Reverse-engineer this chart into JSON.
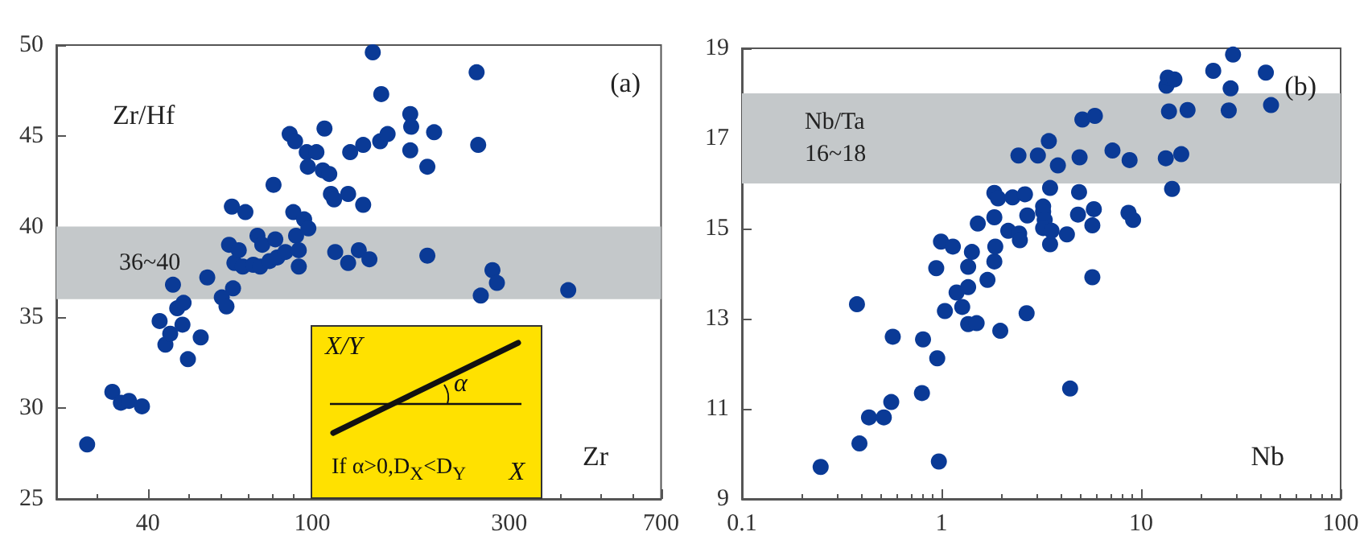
{
  "chart_data": [
    {
      "type": "scatter",
      "title": "(a)",
      "xlabel": "Zr",
      "ylabel": "Zr/Hf",
      "log": "x",
      "grid": false,
      "marker": "circle",
      "xlim": [
        24,
        700
      ],
      "xticks": [
        40,
        100,
        300,
        700
      ],
      "ylim": [
        25,
        50
      ],
      "yticks": [
        25,
        30,
        35,
        40,
        45,
        50
      ],
      "bands": [
        {
          "axis": "y",
          "from": 36,
          "to": 40,
          "label": "36~40",
          "color": "#c4c8ca"
        }
      ],
      "annotations": [
        "X/Y",
        "α",
        "If α>0,D$_{X}$<D$_{Y}$",
        "X"
      ],
      "series": [
        {
          "color": "#0a3a96",
          "x": [
            28.5,
            32.8,
            34.4,
            36.0,
            38.7,
            42.7,
            44.1,
            45.3,
            46.0,
            47.1,
            48.8,
            48.5,
            50.0,
            53.7,
            55.7,
            60.4,
            62.0,
            62.9,
            64.3,
            63.9,
            64.8,
            66.4,
            67.9,
            68.9,
            72.0,
            74.8,
            73.7,
            75.7,
            78.8,
            80.6,
            81.4,
            82.3,
            86.1,
            88.2,
            90.9,
            90.0,
            91.4,
            92.8,
            92.8,
            95.6,
            97.9,
            97.0,
            97.6,
            102.4,
            107.1,
            106.1,
            110.0,
            111.0,
            113.0,
            113.7,
            122.2,
            122.2,
            123.6,
            129.7,
            132.9,
            132.9,
            137.6,
            140.2,
            147.0,
            146.1,
            152.3,
            172.8,
            172.8,
            173.7,
            190.1,
            190.1,
            197.4,
            250.2,
            252.4,
            256.1,
            273.3,
            280.2,
            417.1
          ],
          "values": [
            28.0,
            30.9,
            30.3,
            30.4,
            30.1,
            34.8,
            33.5,
            34.1,
            36.8,
            35.5,
            35.8,
            34.6,
            32.7,
            33.9,
            37.2,
            36.1,
            35.6,
            39.0,
            36.6,
            41.1,
            38.0,
            38.7,
            37.8,
            40.8,
            37.9,
            37.8,
            39.5,
            39.0,
            38.1,
            42.3,
            39.3,
            38.3,
            38.6,
            45.1,
            44.7,
            40.8,
            39.5,
            38.7,
            37.8,
            40.4,
            39.9,
            44.1,
            43.3,
            44.1,
            45.4,
            43.1,
            42.9,
            41.8,
            41.5,
            38.6,
            41.8,
            38.0,
            44.1,
            38.7,
            41.2,
            44.5,
            38.2,
            49.6,
            47.3,
            44.7,
            45.1,
            46.2,
            44.2,
            45.5,
            38.4,
            43.3,
            45.2,
            48.5,
            44.5,
            36.2,
            37.6,
            36.9,
            36.5
          ]
        }
      ]
    },
    {
      "type": "scatter",
      "title": "(b)",
      "xlabel": "Nb",
      "log": "x",
      "grid": false,
      "marker": "circle",
      "xlim": [
        0.1,
        100
      ],
      "xticks": [
        0.1,
        1,
        10,
        100
      ],
      "ylim": [
        9,
        19
      ],
      "yticks": [
        9,
        11,
        13,
        15,
        17,
        19
      ],
      "bands": [
        {
          "axis": "y",
          "from": 16,
          "to": 18,
          "label": "Nb/Ta\n16~18",
          "color": "#c4c8ca"
        }
      ],
      "series": [
        {
          "color": "#0a3a96",
          "x": [
            0.248,
            0.377,
            0.388,
            0.433,
            0.514,
            0.56,
            0.57,
            0.798,
            0.808,
            0.941,
            0.952,
            0.97,
            0.994,
            1.04,
            1.14,
            1.19,
            1.27,
            1.36,
            1.36,
            1.36,
            1.42,
            1.5,
            1.52,
            1.7,
            1.84,
            1.84,
            1.84,
            1.86,
            1.92,
            1.97,
            2.16,
            2.27,
            2.43,
            2.45,
            2.47,
            2.62,
            2.67,
            2.69,
            3.04,
            3.23,
            3.23,
            3.29,
            3.23,
            3.45,
            3.5,
            3.5,
            3.56,
            3.83,
            4.25,
            4.41,
            4.83,
            4.89,
            4.92,
            5.08,
            5.7,
            5.7,
            5.8,
            5.87,
            7.19,
            8.65,
            8.76,
            9.12,
            13.3,
            13.4,
            13.6,
            13.8,
            14.3,
            14.7,
            15.9,
            17.1,
            23.0,
            27.5,
            28.1,
            28.9,
            42.2,
            44.8
          ],
          "values": [
            9.71,
            13.32,
            10.23,
            10.81,
            10.81,
            11.15,
            12.6,
            11.35,
            12.54,
            14.12,
            12.12,
            9.83,
            14.71,
            13.17,
            14.6,
            13.58,
            13.26,
            13.7,
            14.15,
            12.88,
            14.48,
            12.9,
            15.11,
            13.86,
            15.25,
            15.79,
            14.27,
            14.6,
            15.67,
            12.73,
            14.95,
            15.69,
            16.62,
            14.89,
            14.74,
            15.76,
            13.12,
            15.29,
            16.62,
            15.49,
            15.37,
            15.19,
            15.01,
            16.94,
            15.9,
            14.65,
            14.95,
            16.4,
            14.87,
            11.45,
            15.31,
            15.81,
            16.58,
            17.42,
            15.07,
            13.92,
            15.43,
            17.5,
            16.73,
            15.35,
            16.52,
            15.19,
            16.56,
            18.17,
            18.35,
            17.6,
            15.88,
            18.31,
            16.65,
            17.63,
            18.5,
            17.62,
            18.11,
            18.86,
            18.46,
            17.74
          ]
        }
      ]
    }
  ]
}
